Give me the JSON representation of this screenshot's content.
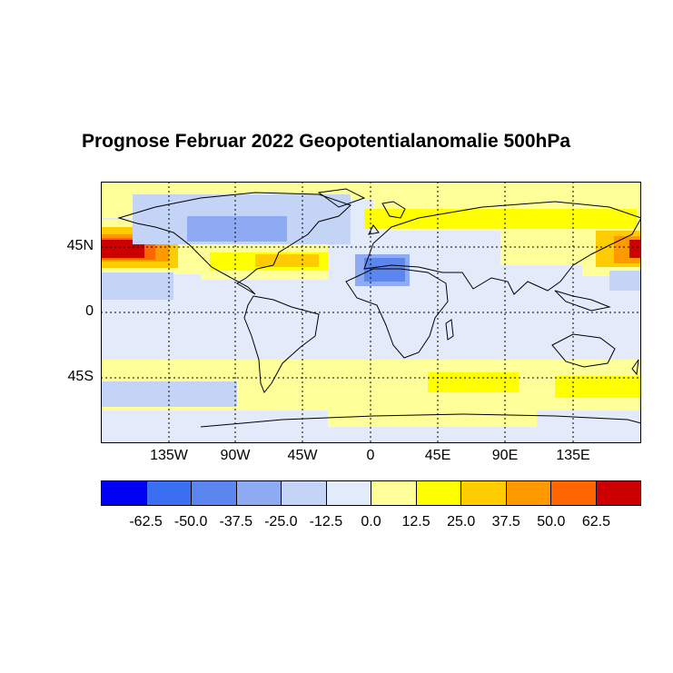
{
  "title": "Prognose Februar 2022 Geopotentialanomalie 500hPa",
  "y_ticks": [
    "45N",
    "0",
    "45S"
  ],
  "x_ticks": [
    "135W",
    "90W",
    "45W",
    "0",
    "45E",
    "90E",
    "135E"
  ],
  "legend": {
    "colors": [
      "#0000f5",
      "#3a6ff2",
      "#5b86f0",
      "#8daaf2",
      "#c3d4f7",
      "#e3ebfb",
      "#ffff99",
      "#ffff00",
      "#ffcc00",
      "#ff9900",
      "#ff6600",
      "#cc0000"
    ],
    "labels": [
      "-62.5",
      "-50.0",
      "-37.5",
      "-25.0",
      "-12.5",
      "0.0",
      "12.5",
      "25.0",
      "37.5",
      "50.0",
      "62.5"
    ]
  }
}
